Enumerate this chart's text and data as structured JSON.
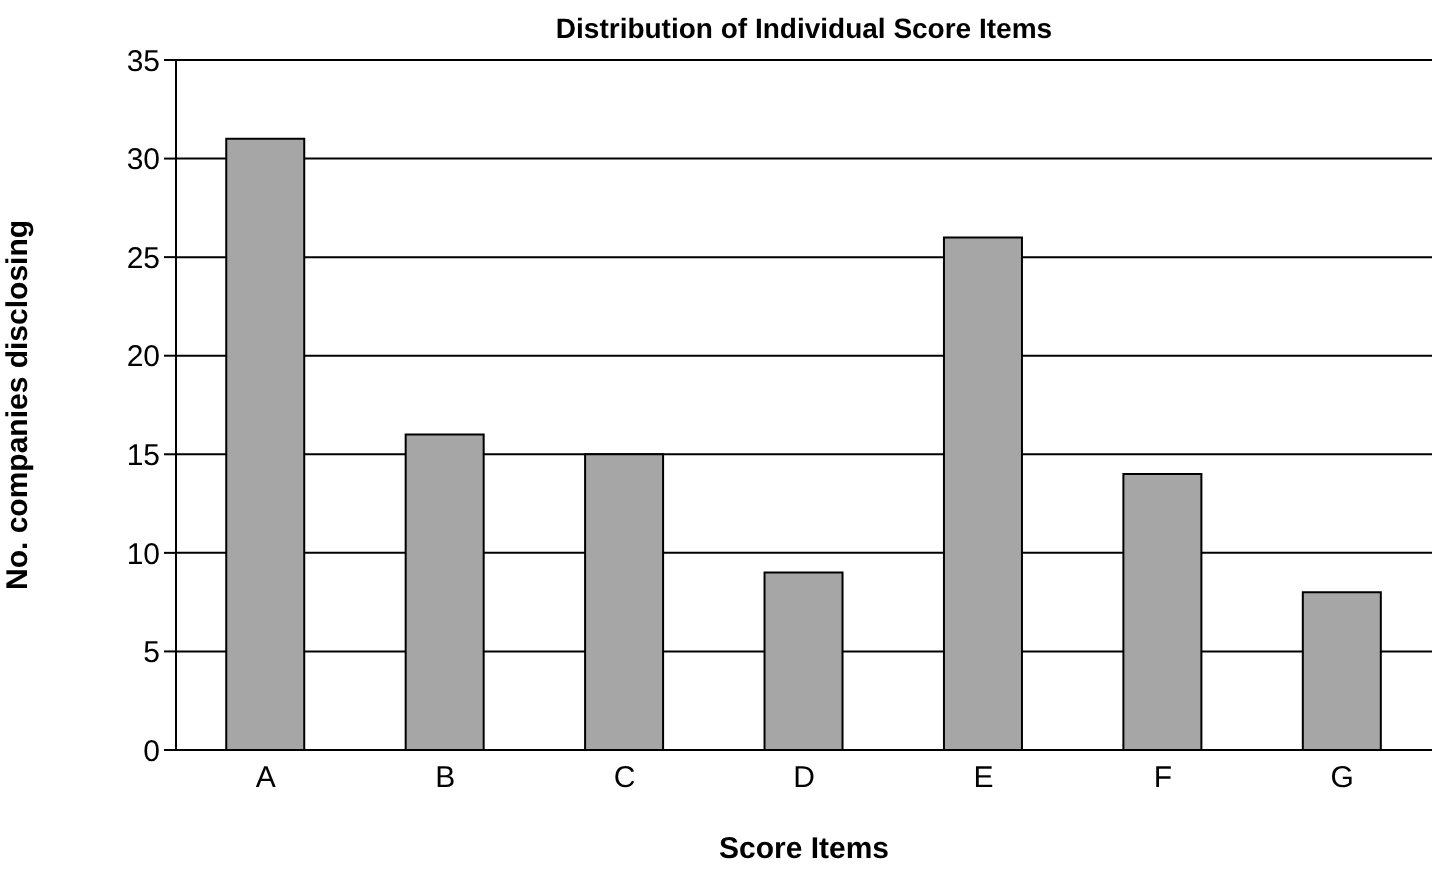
{
  "chart_data": {
    "type": "bar",
    "title": "Distribution of Individual Score Items",
    "xlabel": "Score Items",
    "ylabel": "No. companies disclosing",
    "categories": [
      "A",
      "B",
      "C",
      "D",
      "E",
      "F",
      "G"
    ],
    "values": [
      31,
      16,
      15,
      9,
      26,
      14,
      8
    ],
    "color": "#a6a6a6",
    "ylim": [
      0,
      35
    ],
    "yticks": [
      0,
      5,
      10,
      15,
      20,
      25,
      30,
      35
    ],
    "grid": "y"
  }
}
